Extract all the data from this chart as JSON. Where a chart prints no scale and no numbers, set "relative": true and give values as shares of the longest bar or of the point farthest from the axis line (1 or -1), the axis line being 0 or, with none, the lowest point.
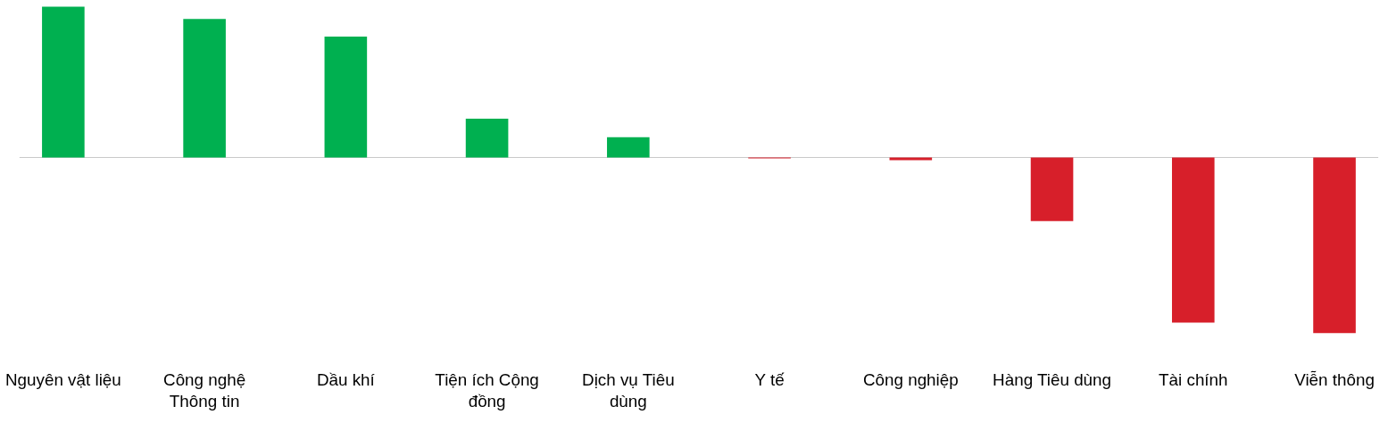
{
  "chart_data": {
    "type": "bar",
    "relative": true,
    "categories": [
      "Nguyên vật liệu",
      "Công nghệ\nThông tin",
      "Dầu khí",
      "Tiện ích Cộng\nđồng",
      "Dịch vụ Tiêu\ndùng",
      "Y tế",
      "Công nghiệp",
      "Hàng Tiêu dùng",
      "Tài chính",
      "Viễn thông"
    ],
    "values": [
      0.859,
      0.789,
      0.688,
      0.221,
      0.116,
      -0.005,
      -0.015,
      -0.362,
      -0.94,
      -1
    ],
    "colors": [
      "#00b050",
      "#00b050",
      "#00b050",
      "#00b050",
      "#00b050",
      "#d71f2a",
      "#d71f2a",
      "#d71f2a",
      "#d71f2a",
      "#d71f2a"
    ],
    "grid": false
  }
}
